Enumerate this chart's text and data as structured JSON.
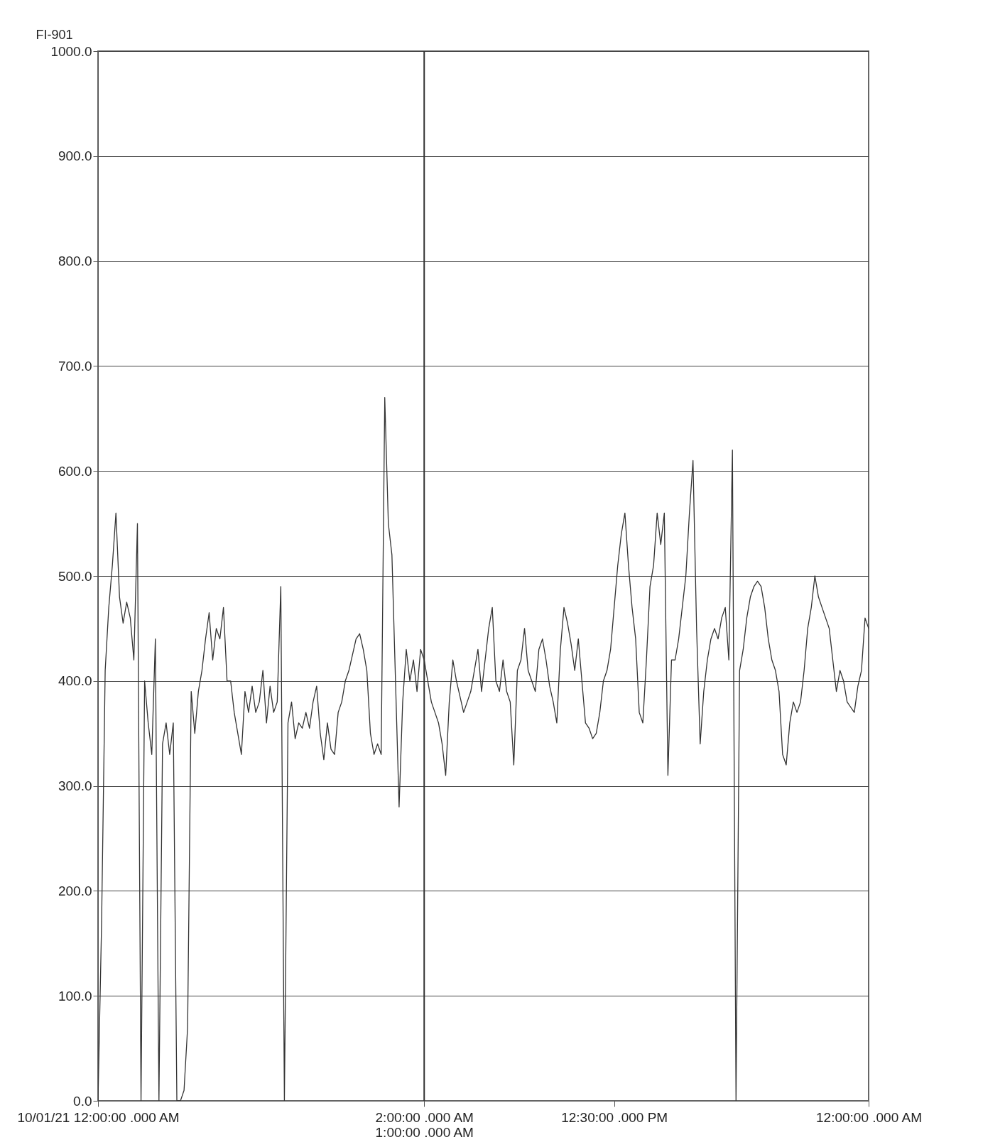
{
  "chart_data": {
    "type": "line",
    "ylabel": "FI-901",
    "categories": [
      "10/01/21  12:00:00 .000 AM",
      null,
      null,
      null,
      null,
      null,
      null,
      null,
      null,
      null,
      null,
      null,
      null,
      null,
      null,
      null,
      null,
      null,
      null,
      null,
      null,
      null,
      null,
      null,
      null,
      null,
      null,
      null,
      null,
      null,
      null,
      null,
      null,
      null,
      null,
      null,
      null,
      null,
      null,
      null,
      null,
      null,
      null,
      null,
      null,
      null,
      null,
      null,
      null,
      null,
      null,
      null,
      null,
      null,
      null,
      null,
      null,
      null,
      null,
      null,
      null,
      null,
      null,
      null,
      null,
      null,
      null,
      null,
      null,
      null,
      null,
      null,
      null,
      null,
      null,
      null,
      null,
      null,
      null,
      null,
      null,
      null,
      null,
      null,
      null,
      null,
      null,
      null,
      null,
      null,
      null,
      "2:00:00 .000 AM\n1:00:00 .000 AM",
      null,
      null,
      null,
      null,
      null,
      null,
      null,
      null,
      null,
      null,
      null,
      null,
      null,
      null,
      null,
      null,
      null,
      null,
      null,
      null,
      null,
      null,
      null,
      null,
      null,
      null,
      null,
      null,
      null,
      null,
      null,
      null,
      null,
      null,
      null,
      null,
      null,
      null,
      null,
      null,
      null,
      null,
      null,
      null,
      null,
      null,
      null,
      null,
      null,
      null,
      null,
      null,
      "12:30:00 .000 PM",
      null,
      null,
      null,
      null,
      null,
      null,
      null,
      null,
      null,
      null,
      null,
      null,
      null,
      null,
      null,
      null,
      null,
      null,
      null,
      null,
      null,
      null,
      null,
      null,
      null,
      null,
      null,
      null,
      null,
      null,
      null,
      null,
      null,
      null,
      null,
      null,
      null,
      null,
      null,
      null,
      null,
      null,
      null,
      null,
      null,
      null,
      null,
      null,
      null,
      null,
      null,
      null,
      null,
      null,
      null,
      null,
      null,
      null,
      null,
      null,
      null,
      null,
      null,
      null,
      null,
      null,
      null,
      null,
      null,
      null,
      "12:00:00 .000 AM"
    ],
    "series": [
      {
        "color": "#333333",
        "values": [
          0,
          170,
          410,
          470,
          510,
          560,
          480,
          455,
          475,
          460,
          420,
          550,
          0,
          400,
          360,
          330,
          440,
          0,
          340,
          360,
          330,
          360,
          0,
          0,
          10,
          70,
          390,
          350,
          390,
          410,
          440,
          465,
          420,
          450,
          440,
          470,
          400,
          400,
          370,
          350,
          330,
          390,
          370,
          395,
          370,
          380,
          410,
          360,
          395,
          370,
          380,
          490,
          0,
          360,
          380,
          345,
          360,
          355,
          370,
          355,
          380,
          395,
          350,
          325,
          360,
          335,
          330,
          370,
          380,
          400,
          410,
          425,
          440,
          445,
          430,
          410,
          350,
          330,
          340,
          330,
          670,
          550,
          520,
          400,
          280,
          380,
          430,
          400,
          420,
          390,
          430,
          420,
          400,
          380,
          370,
          360,
          340,
          310,
          380,
          420,
          400,
          385,
          370,
          380,
          390,
          410,
          430,
          390,
          420,
          450,
          470,
          400,
          390,
          420,
          390,
          380,
          320,
          410,
          420,
          450,
          410,
          400,
          390,
          430,
          440,
          420,
          395,
          380,
          360,
          430,
          470,
          455,
          435,
          410,
          440,
          400,
          360,
          355,
          345,
          350,
          370,
          400,
          410,
          430,
          470,
          510,
          540,
          560,
          510,
          470,
          440,
          370,
          360,
          420,
          490,
          510,
          560,
          530,
          560,
          310,
          420,
          420,
          440,
          470,
          500,
          560,
          610,
          450,
          340,
          390,
          420,
          440,
          450,
          440,
          460,
          470,
          420,
          620,
          0,
          410,
          430,
          460,
          480,
          490,
          495,
          490,
          470,
          440,
          420,
          410,
          390,
          330,
          320,
          360,
          380,
          370,
          380,
          410,
          450,
          470,
          500,
          480,
          470,
          460,
          450,
          420,
          390,
          410,
          400,
          380,
          375,
          370,
          395,
          410,
          460,
          450
        ]
      }
    ],
    "ylim": [
      0,
      1000
    ],
    "yticks": [
      {
        "value": 0,
        "label": "0.0"
      },
      {
        "value": 100,
        "label": "100.0"
      },
      {
        "value": 200,
        "label": "200.0"
      },
      {
        "value": 300,
        "label": "300.0"
      },
      {
        "value": 400,
        "label": "400.0"
      },
      {
        "value": 500,
        "label": "500.0"
      },
      {
        "value": 600,
        "label": "600.0"
      },
      {
        "value": 700,
        "label": "700.0"
      },
      {
        "value": 800,
        "label": "800.0"
      },
      {
        "value": 900,
        "label": "900.0"
      },
      {
        "value": 1000,
        "label": "1000.0"
      }
    ],
    "ref_lines": [
      {
        "axis": "x",
        "value": "2:00:00 .000 AM\n1:00:00 .000 AM",
        "color": "#333333"
      }
    ],
    "grid": "y"
  }
}
